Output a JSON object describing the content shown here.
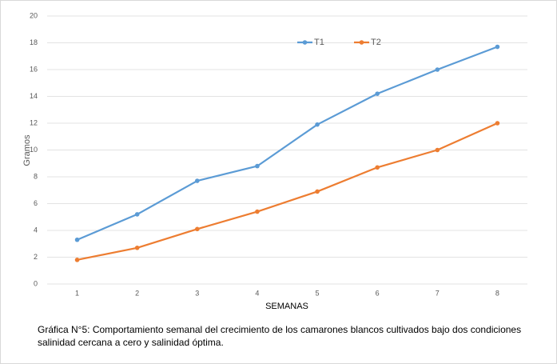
{
  "chart_data": {
    "type": "line",
    "y_label": "Gramos",
    "x_label": "SEMANAS",
    "categories": [
      "1",
      "2",
      "3",
      "4",
      "5",
      "6",
      "7",
      "8"
    ],
    "series": [
      {
        "name": "T1",
        "color": "#5b9bd5",
        "values": [
          3.3,
          5.2,
          7.7,
          8.8,
          11.9,
          14.2,
          16.0,
          17.7
        ]
      },
      {
        "name": "T2",
        "color": "#ed7d31",
        "values": [
          1.8,
          2.7,
          4.1,
          5.4,
          6.9,
          8.7,
          10.0,
          12.0
        ]
      }
    ],
    "ylim": [
      0,
      20
    ],
    "yticks": [
      0,
      2,
      4,
      6,
      8,
      10,
      12,
      14,
      16,
      18,
      20
    ],
    "grid": true,
    "legend": "top"
  },
  "caption": [
    "Gráfica N°5: Comportamiento semanal del crecimiento de los camarones blancos cultivados bajo dos condiciones",
    "salinidad cercana a cero y salinidad óptima."
  ]
}
